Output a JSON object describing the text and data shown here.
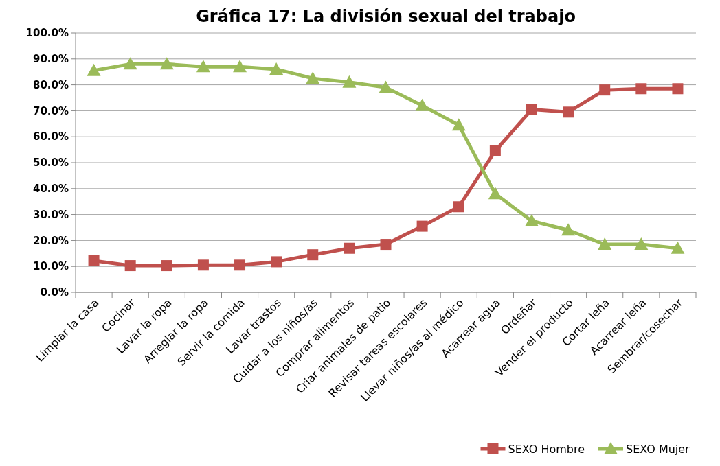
{
  "chart_data": {
    "type": "line",
    "title": "Gráfica 17: La división sexual del trabajo",
    "categories": [
      "Limpiar la casa",
      "Cocinar",
      "Lavar la ropa",
      "Arreglar la ropa",
      "Servir la comida",
      "Lavar trastos",
      "Cuidar a los niños/as",
      "Comprar alimentos",
      "Criar animales de patio",
      "Revisar tareas escolares",
      "Llevar niños/as al médico",
      "Acarrear agua",
      "Ordeñar",
      "Vender el producto",
      "Cortar leña",
      "Acarrear leña",
      "Sembrar/cosechar"
    ],
    "series": [
      {
        "name": "SEXO Hombre",
        "color": "#c0504d",
        "marker": "square",
        "values": [
          12.2,
          10.3,
          10.3,
          10.5,
          10.5,
          11.8,
          14.5,
          17.0,
          18.5,
          25.5,
          33.0,
          54.5,
          70.5,
          69.5,
          78.0,
          78.5,
          78.5
        ]
      },
      {
        "name": "SEXO Mujer",
        "color": "#9bbb59",
        "marker": "triangle",
        "values": [
          85.5,
          88.0,
          88.0,
          87.0,
          87.0,
          86.0,
          82.5,
          81.0,
          79.0,
          72.0,
          64.5,
          38.0,
          27.5,
          24.0,
          18.5,
          18.5,
          17.0
        ]
      }
    ],
    "ylim": [
      0,
      100
    ],
    "yticks": [
      {
        "value": 0,
        "label": "0.0%"
      },
      {
        "value": 10,
        "label": "10.0%"
      },
      {
        "value": 20,
        "label": "20.0%"
      },
      {
        "value": 30,
        "label": "30.0%"
      },
      {
        "value": 40,
        "label": "40.0%"
      },
      {
        "value": 50,
        "label": "50.0%"
      },
      {
        "value": 60,
        "label": "60.0%"
      },
      {
        "value": 70,
        "label": "70.0%"
      },
      {
        "value": 80,
        "label": "80.0%"
      },
      {
        "value": 90,
        "label": "90.0%"
      },
      {
        "value": 100,
        "label": "100.0%"
      }
    ],
    "grid": "y",
    "legend": "bottom right",
    "line_style": "solid"
  }
}
